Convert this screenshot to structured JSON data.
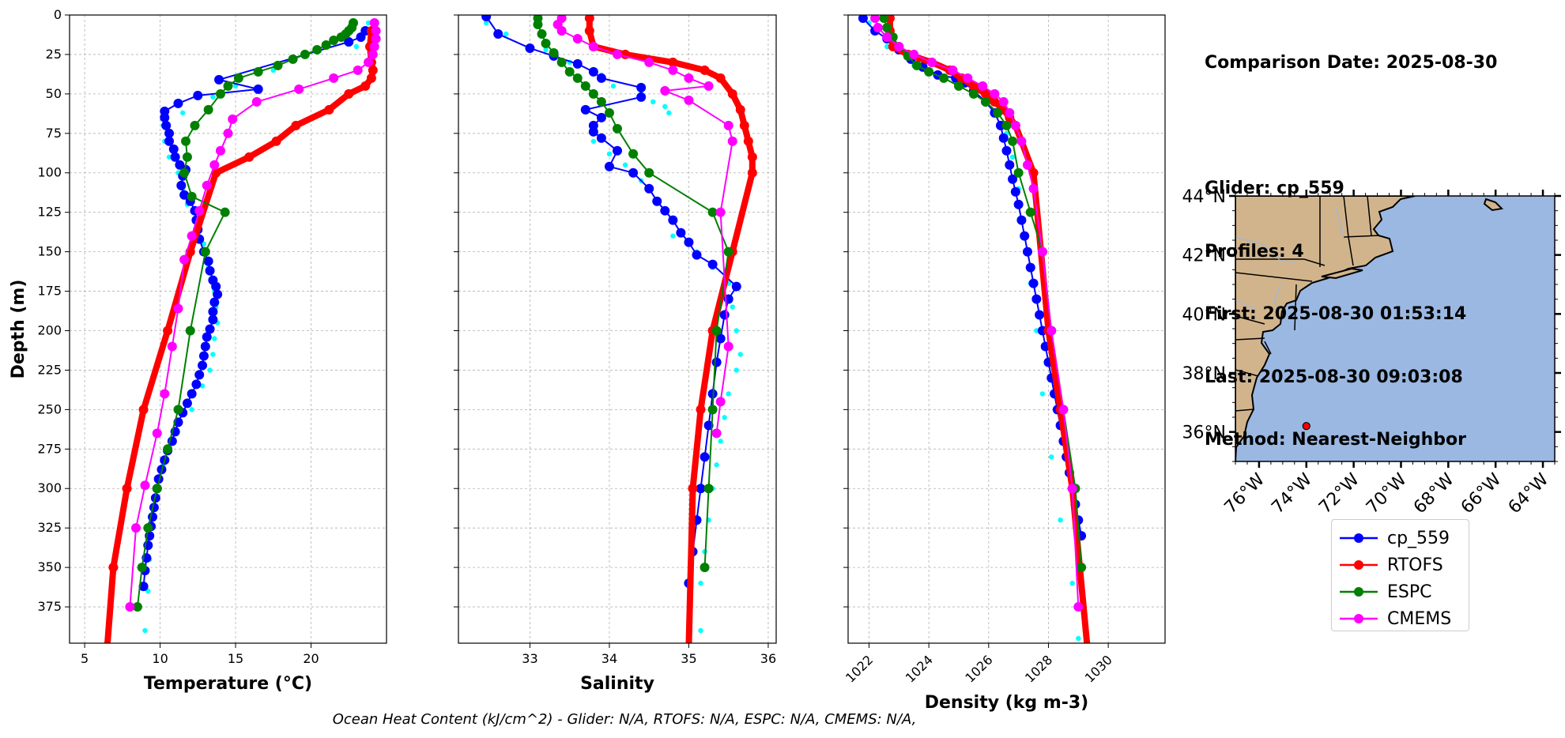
{
  "chart_data": [
    {
      "type": "line",
      "xlabel": "Temperature (°C)",
      "ylabel": "Depth (m)",
      "xlim": [
        4,
        25
      ],
      "ylim": [
        398,
        0
      ],
      "xticks": [
        5,
        10,
        15,
        20
      ],
      "yticks": [
        0,
        25,
        50,
        75,
        100,
        125,
        150,
        175,
        200,
        225,
        250,
        275,
        300,
        325,
        350,
        375
      ],
      "grid": true,
      "series": [
        {
          "name": "cp_559 (all points)",
          "color": "#00ffff",
          "style": "dots",
          "x": [
            23.8,
            23.0,
            17.5,
            15.0,
            13.5,
            11.5,
            10.2,
            10.3,
            10.6,
            11.2,
            11.5,
            11.8,
            12.5,
            12.9,
            13.2,
            13.6,
            13.7,
            13.8,
            13.6,
            13.5,
            13.3,
            12.8,
            12.1,
            11.0,
            10.2,
            9.8,
            9.5,
            9.3,
            9.2,
            9.0
          ],
          "y": [
            5,
            20,
            35,
            45,
            52,
            62,
            70,
            80,
            90,
            100,
            110,
            120,
            130,
            145,
            160,
            175,
            185,
            195,
            205,
            215,
            225,
            235,
            250,
            265,
            285,
            305,
            325,
            345,
            365,
            390
          ]
        },
        {
          "name": "cp_559",
          "color": "#0000ff",
          "style": "line-markers",
          "x": [
            23.6,
            23.3,
            22.5,
            13.9,
            16.5,
            12.5,
            11.2,
            10.3,
            10.3,
            10.4,
            10.6,
            10.6,
            10.9,
            11.0,
            11.3,
            11.7,
            11.5,
            11.4,
            11.6,
            12.0,
            12.3,
            12.4,
            12.5,
            12.6,
            12.9,
            13.2,
            13.3,
            13.5,
            13.7,
            13.8,
            13.6,
            13.5,
            13.5,
            13.3,
            13.1,
            13.0,
            12.9,
            12.8,
            12.6,
            12.4,
            12.1,
            11.8,
            11.5,
            11.2,
            11.0,
            10.8,
            10.5,
            10.3,
            10.1,
            9.9,
            9.8,
            9.7,
            9.6,
            9.5,
            9.4,
            9.3,
            9.2,
            9.1,
            9.0,
            8.9
          ],
          "y": [
            10,
            14,
            17,
            41,
            47,
            51,
            56,
            61,
            65,
            70,
            75,
            80,
            85,
            90,
            95,
            98,
            102,
            108,
            114,
            118,
            124,
            130,
            136,
            142,
            150,
            156,
            162,
            168,
            172,
            177,
            182,
            188,
            193,
            199,
            204,
            210,
            216,
            222,
            228,
            234,
            240,
            246,
            252,
            258,
            264,
            270,
            276,
            282,
            288,
            294,
            300,
            306,
            312,
            318,
            324,
            330,
            336,
            344,
            352,
            362
          ]
        },
        {
          "name": "RTOFS",
          "color": "#ff0000",
          "style": "line-markers",
          "x": [
            24.0,
            23.9,
            24.0,
            24.1,
            24.0,
            23.6,
            22.5,
            21.2,
            19.0,
            17.7,
            15.9,
            13.7,
            12.0,
            10.5,
            8.9,
            7.8,
            6.9,
            6.5
          ],
          "y": [
            10,
            20,
            30,
            35,
            40,
            45,
            50,
            60,
            70,
            80,
            90,
            100,
            150,
            200,
            250,
            300,
            350,
            400
          ]
        },
        {
          "name": "ESPC",
          "color": "#008000",
          "style": "line-markers",
          "x": [
            22.8,
            22.7,
            22.5,
            22.3,
            22.0,
            21.5,
            21.0,
            20.4,
            19.6,
            18.8,
            17.8,
            16.5,
            15.2,
            14.5,
            14.0,
            13.2,
            12.3,
            11.7,
            11.8,
            11.6,
            12.1,
            14.3,
            13.0,
            12.0,
            11.2,
            10.5,
            9.8,
            9.2,
            8.8,
            8.5
          ],
          "y": [
            5,
            8,
            10,
            12,
            14,
            16,
            19,
            22,
            25,
            28,
            32,
            36,
            40,
            45,
            50,
            60,
            70,
            80,
            90,
            100,
            115,
            125,
            150,
            200,
            250,
            275,
            300,
            325,
            350,
            375
          ]
        },
        {
          "name": "CMEMS",
          "color": "#ff00ff",
          "style": "line-markers",
          "x": [
            24.2,
            24.3,
            24.3,
            24.2,
            24.1,
            23.8,
            23.1,
            21.5,
            19.2,
            16.4,
            14.8,
            14.5,
            14.0,
            13.6,
            13.1,
            12.6,
            12.1,
            11.6,
            11.2,
            10.8,
            10.3,
            9.8,
            9.0,
            8.4,
            8.0
          ],
          "y": [
            5,
            10,
            15,
            20,
            25,
            30,
            35,
            40,
            47,
            55,
            66,
            75,
            86,
            95,
            108,
            124,
            140,
            155,
            186,
            210,
            240,
            265,
            298,
            325,
            375
          ]
        }
      ]
    },
    {
      "type": "line",
      "xlabel": "Salinity",
      "ylabel": "",
      "xlim": [
        32.1,
        36.1
      ],
      "ylim": [
        398,
        0
      ],
      "xticks": [
        33,
        34,
        35,
        36
      ],
      "grid": true,
      "series": [
        {
          "name": "cp_559 (all points)",
          "color": "#00ffff",
          "style": "dots",
          "x": [
            32.45,
            32.7,
            33.2,
            33.5,
            33.9,
            34.05,
            34.4,
            34.55,
            34.7,
            34.75,
            33.8,
            34.0,
            34.2,
            34.4,
            34.8,
            35.1,
            35.3,
            35.5,
            35.55,
            35.6,
            35.65,
            35.6,
            35.5,
            35.45,
            35.4,
            35.35,
            35.3,
            35.25,
            35.2,
            35.15,
            35.15
          ],
          "y": [
            5,
            12,
            22,
            30,
            38,
            45,
            50,
            55,
            58,
            62,
            80,
            88,
            95,
            105,
            140,
            150,
            160,
            170,
            185,
            200,
            215,
            225,
            240,
            255,
            270,
            285,
            300,
            320,
            340,
            360,
            390
          ]
        },
        {
          "name": "cp_559",
          "color": "#0000ff",
          "style": "line-markers",
          "x": [
            32.45,
            32.6,
            33.0,
            33.3,
            33.6,
            33.8,
            33.9,
            34.4,
            34.4,
            33.7,
            33.9,
            33.8,
            33.8,
            33.9,
            34.1,
            34.0,
            34.3,
            34.5,
            34.6,
            34.7,
            34.8,
            34.9,
            35.0,
            35.1,
            35.3,
            35.6,
            35.5,
            35.45,
            35.4,
            35.35,
            35.3,
            35.25,
            35.2,
            35.15,
            35.1,
            35.05,
            35.0
          ],
          "y": [
            1,
            12,
            21,
            26,
            31,
            36,
            40,
            46,
            52,
            60,
            65,
            70,
            74,
            78,
            86,
            96,
            100,
            110,
            118,
            124,
            130,
            138,
            144,
            152,
            158,
            172,
            180,
            190,
            205,
            220,
            240,
            260,
            280,
            300,
            320,
            340,
            360
          ]
        },
        {
          "name": "RTOFS",
          "color": "#ff0000",
          "style": "line-markers",
          "x": [
            33.75,
            33.75,
            33.8,
            34.2,
            34.8,
            35.2,
            35.4,
            35.55,
            35.65,
            35.7,
            35.75,
            35.8,
            35.8,
            35.55,
            35.3,
            35.15,
            35.05,
            35.0
          ],
          "y": [
            2,
            10,
            20,
            25,
            30,
            35,
            40,
            50,
            60,
            70,
            80,
            90,
            100,
            150,
            200,
            250,
            300,
            400
          ]
        },
        {
          "name": "ESPC",
          "color": "#008000",
          "style": "line-markers",
          "x": [
            33.1,
            33.1,
            33.15,
            33.2,
            33.3,
            33.4,
            33.5,
            33.6,
            33.7,
            33.8,
            33.9,
            34.0,
            34.1,
            34.3,
            34.5,
            35.3,
            35.5,
            35.35,
            35.3,
            35.25,
            35.2
          ],
          "y": [
            2,
            6,
            12,
            18,
            24,
            30,
            36,
            40,
            45,
            50,
            55,
            62,
            72,
            88,
            100,
            125,
            150,
            200,
            250,
            300,
            350
          ]
        },
        {
          "name": "CMEMS",
          "color": "#ff00ff",
          "style": "line-markers",
          "x": [
            33.4,
            33.35,
            33.4,
            33.6,
            33.8,
            34.1,
            34.5,
            34.8,
            35.0,
            35.25,
            34.7,
            35.0,
            35.5,
            35.55,
            35.4,
            35.5,
            35.4,
            35.35
          ],
          "y": [
            2,
            6,
            10,
            15,
            20,
            25,
            30,
            35,
            40,
            45,
            48,
            54,
            70,
            80,
            125,
            210,
            245,
            265
          ]
        }
      ]
    },
    {
      "type": "line",
      "xlabel": "Density (kg m-3)",
      "ylabel": "",
      "xlim": [
        1021.3,
        1031.9
      ],
      "ylim": [
        398,
        0
      ],
      "xticks": [
        1022,
        1024,
        1026,
        1028,
        1030
      ],
      "grid": true,
      "series": [
        {
          "name": "cp_559 (all points)",
          "color": "#00ffff",
          "style": "dots",
          "x": [
            1022.0,
            1022.6,
            1023.5,
            1024.8,
            1025.6,
            1026.3,
            1026.6,
            1026.8,
            1027.0,
            1027.2,
            1027.4,
            1027.6,
            1027.8,
            1028.1,
            1028.4,
            1028.8,
            1029.0
          ],
          "y": [
            5,
            20,
            32,
            38,
            45,
            60,
            75,
            90,
            110,
            140,
            170,
            200,
            240,
            280,
            320,
            360,
            395
          ]
        },
        {
          "name": "cp_559",
          "color": "#0000ff",
          "style": "line-markers",
          "x": [
            1021.8,
            1022.2,
            1022.6,
            1023.0,
            1023.4,
            1023.8,
            1024.3,
            1024.9,
            1025.2,
            1025.5,
            1025.9,
            1026.2,
            1026.4,
            1026.5,
            1026.6,
            1026.7,
            1026.8,
            1026.9,
            1027.0,
            1027.1,
            1027.2,
            1027.3,
            1027.4,
            1027.5,
            1027.6,
            1027.7,
            1027.8,
            1027.9,
            1028.0,
            1028.1,
            1028.2,
            1028.3,
            1028.4,
            1028.5,
            1028.6,
            1028.7,
            1028.8,
            1028.9,
            1029.0,
            1029.1
          ],
          "y": [
            2,
            10,
            15,
            22,
            28,
            33,
            38,
            40,
            43,
            48,
            55,
            62,
            70,
            78,
            86,
            95,
            104,
            112,
            120,
            130,
            140,
            150,
            160,
            170,
            180,
            190,
            200,
            210,
            220,
            230,
            240,
            250,
            260,
            270,
            280,
            290,
            300,
            310,
            320,
            330
          ]
        },
        {
          "name": "RTOFS",
          "color": "#ff0000",
          "style": "line-markers",
          "x": [
            1022.7,
            1022.7,
            1022.8,
            1023.3,
            1024.1,
            1024.7,
            1025.1,
            1025.5,
            1025.9,
            1026.2,
            1026.5,
            1026.7,
            1026.9,
            1027.5,
            1028.0,
            1028.4,
            1028.8,
            1029.3
          ],
          "y": [
            2,
            10,
            20,
            25,
            30,
            35,
            40,
            45,
            50,
            55,
            60,
            65,
            70,
            100,
            200,
            250,
            300,
            400
          ]
        },
        {
          "name": "ESPC",
          "color": "#008000",
          "style": "line-markers",
          "x": [
            1022.5,
            1022.6,
            1022.8,
            1023.0,
            1023.3,
            1023.6,
            1024.0,
            1024.5,
            1025.0,
            1025.5,
            1025.9,
            1026.3,
            1026.6,
            1026.8,
            1027.0,
            1027.4,
            1027.8,
            1028.1,
            1028.5,
            1028.9,
            1029.1
          ],
          "y": [
            2,
            8,
            14,
            20,
            26,
            32,
            36,
            40,
            45,
            50,
            55,
            62,
            70,
            80,
            100,
            125,
            150,
            200,
            250,
            300,
            350
          ]
        },
        {
          "name": "CMEMS",
          "color": "#ff00ff",
          "style": "line-markers",
          "x": [
            1022.2,
            1022.3,
            1022.6,
            1023.0,
            1023.5,
            1024.1,
            1024.8,
            1025.3,
            1025.8,
            1026.2,
            1026.5,
            1026.7,
            1026.9,
            1027.1,
            1027.3,
            1027.5,
            1027.8,
            1028.1,
            1028.5,
            1028.8,
            1029.0
          ],
          "y": [
            2,
            8,
            14,
            20,
            25,
            30,
            35,
            40,
            45,
            50,
            55,
            62,
            70,
            80,
            95,
            110,
            150,
            200,
            250,
            300,
            375
          ]
        }
      ]
    },
    {
      "type": "map",
      "lon_range": [
        -77.0,
        -63.5
      ],
      "lat_range": [
        35.0,
        44.0
      ],
      "lon_ticks": [
        "76°W",
        "74°W",
        "72°W",
        "70°W",
        "68°W",
        "66°W",
        "64°W"
      ],
      "lat_ticks": [
        "44°N",
        "42°N",
        "40°N",
        "38°N",
        "36°N"
      ],
      "lon_values": [
        -76,
        -74,
        -72,
        -70,
        -68,
        -66,
        -64
      ],
      "lat_values": [
        44,
        42,
        40,
        38,
        36
      ],
      "ocean_color": "#9ab8e2",
      "land_color": "#d2b48c",
      "glider_position": {
        "lon": -74.0,
        "lat": 36.2,
        "color": "#ff0000"
      }
    }
  ],
  "info": {
    "comparison_date": "Comparison Date: 2025-08-30",
    "glider": "Glider: cp_559",
    "profiles": "Profiles: 4",
    "first": "First: 2025-08-30 01:53:14",
    "last": "Last: 2025-08-30 09:03:08",
    "method": "Method: Nearest-Neighbor"
  },
  "legend": [
    {
      "label": "cp_559",
      "color": "#0000ff"
    },
    {
      "label": "RTOFS",
      "color": "#ff0000"
    },
    {
      "label": "ESPC",
      "color": "#008000"
    },
    {
      "label": "CMEMS",
      "color": "#ff00ff"
    }
  ],
  "footer": {
    "ohc": "Ocean Heat Content (kJ/cm^2) - Glider: N/A,  RTOFS: N/A,  ESPC: N/A,  CMEMS: N/A,"
  }
}
